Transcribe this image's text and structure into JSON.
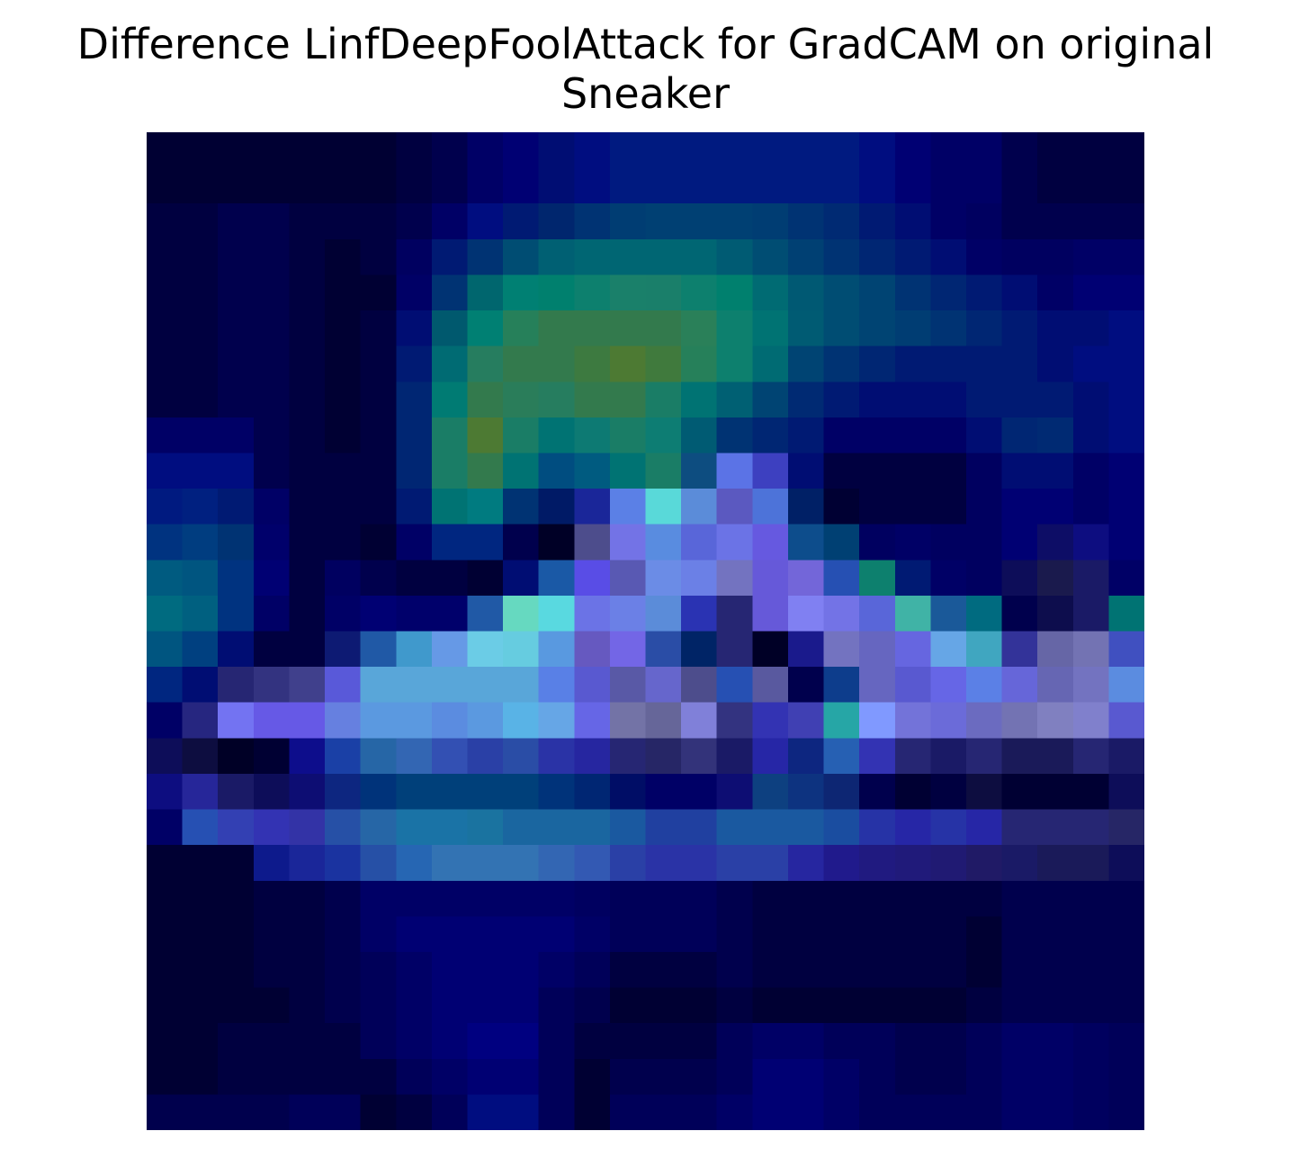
{
  "chart_data": {
    "type": "heatmap",
    "title_lines": [
      "Difference LinfDeepFoolAttack for GradCAM on original",
      "Sneaker"
    ],
    "xlabel": "",
    "ylabel": "",
    "axes_visible": false,
    "rows": 28,
    "cols": 28,
    "colors": [
      [
        "#000033",
        "#000033",
        "#000033",
        "#000033",
        "#000033",
        "#000033",
        "#000033",
        "#000040",
        "#00004d",
        "#000066",
        "#000073",
        "#000d73",
        "#000d80",
        "#001a80",
        "#001a80",
        "#001a80",
        "#001a80",
        "#001a80",
        "#001a80",
        "#001a80",
        "#000d80",
        "#000073",
        "#000066",
        "#000066",
        "#00004d",
        "#000040",
        "#000040",
        "#000040"
      ],
      [
        "#000033",
        "#000033",
        "#000033",
        "#000033",
        "#000033",
        "#000033",
        "#000033",
        "#000040",
        "#00004d",
        "#000066",
        "#000073",
        "#000d73",
        "#000d80",
        "#001a80",
        "#001a80",
        "#001a80",
        "#001a80",
        "#001a80",
        "#001a80",
        "#001a80",
        "#000d80",
        "#000073",
        "#000066",
        "#000066",
        "#00004d",
        "#000040",
        "#000040",
        "#000040"
      ],
      [
        "#000040",
        "#000040",
        "#00004d",
        "#00004d",
        "#000040",
        "#000040",
        "#000040",
        "#00004d",
        "#000066",
        "#000d80",
        "#001a73",
        "#00266e",
        "#003373",
        "#003d73",
        "#004073",
        "#004073",
        "#004073",
        "#003d73",
        "#003373",
        "#002a73",
        "#001a73",
        "#000d73",
        "#000066",
        "#000060",
        "#00004d",
        "#00004d",
        "#00004d",
        "#00004d"
      ],
      [
        "#000040",
        "#000040",
        "#00004d",
        "#00004d",
        "#000040",
        "#000033",
        "#000040",
        "#000060",
        "#001a73",
        "#003373",
        "#004d73",
        "#006073",
        "#006673",
        "#006673",
        "#006673",
        "#006673",
        "#005b73",
        "#004d73",
        "#004073",
        "#003373",
        "#002673",
        "#001a73",
        "#000d73",
        "#000066",
        "#000060",
        "#000060",
        "#000066",
        "#000066"
      ],
      [
        "#000040",
        "#000040",
        "#00004d",
        "#00004d",
        "#000040",
        "#000033",
        "#000033",
        "#000066",
        "#003373",
        "#00666e",
        "#008073",
        "#00806e",
        "#0d806e",
        "#1a806a",
        "#1a7f6a",
        "#0d806e",
        "#00806e",
        "#006b73",
        "#005973",
        "#004d73",
        "#004473",
        "#003373",
        "#002673",
        "#001a73",
        "#000d73",
        "#000066",
        "#000073",
        "#000073"
      ],
      [
        "#000040",
        "#000040",
        "#00004d",
        "#00004d",
        "#000040",
        "#000033",
        "#000040",
        "#000d73",
        "#00596e",
        "#008073",
        "#26805a",
        "#337a4d",
        "#337a4d",
        "#337a4d",
        "#337a4d",
        "#2a8059",
        "#0d806e",
        "#007373",
        "#005b73",
        "#004d73",
        "#004473",
        "#003d73",
        "#003373",
        "#002673",
        "#001a73",
        "#000d73",
        "#000d73",
        "#000d80"
      ],
      [
        "#000040",
        "#000040",
        "#00004d",
        "#00004d",
        "#000040",
        "#000033",
        "#000040",
        "#001a73",
        "#006b73",
        "#267d5f",
        "#337a4d",
        "#337a4d",
        "#3d7a40",
        "#4d7a33",
        "#407a3d",
        "#26805a",
        "#0d806e",
        "#006b73",
        "#004473",
        "#003373",
        "#002673",
        "#001a73",
        "#001a73",
        "#001a73",
        "#001a73",
        "#000d73",
        "#000d80",
        "#000d80"
      ],
      [
        "#000040",
        "#000040",
        "#00004d",
        "#00004d",
        "#000040",
        "#000033",
        "#000040",
        "#002673",
        "#007b73",
        "#337a4d",
        "#2a7d5a",
        "#267d5f",
        "#337a4d",
        "#337a4d",
        "#1a7d66",
        "#007373",
        "#006073",
        "#004473",
        "#002a73",
        "#001a73",
        "#000d73",
        "#000d73",
        "#000d73",
        "#001a73",
        "#001a73",
        "#001a73",
        "#000d73",
        "#000d80"
      ],
      [
        "#000066",
        "#000066",
        "#000066",
        "#00004d",
        "#000040",
        "#000033",
        "#000040",
        "#002673",
        "#1a7d66",
        "#4d7a33",
        "#1a7d66",
        "#007373",
        "#0d7a73",
        "#1a7d66",
        "#0d7d73",
        "#005b73",
        "#003373",
        "#002673",
        "#001a73",
        "#000066",
        "#000066",
        "#000066",
        "#000066",
        "#000d73",
        "#002673",
        "#002a73",
        "#000d73",
        "#000d80"
      ],
      [
        "#000d80",
        "#000d80",
        "#000d80",
        "#00004d",
        "#000040",
        "#000040",
        "#000040",
        "#002673",
        "#1a7d66",
        "#337a4d",
        "#007373",
        "#004d80",
        "#005b80",
        "#007373",
        "#1a7d66",
        "#0d4d80",
        "#5b73e6",
        "#3d40c0",
        "#000d73",
        "#000040",
        "#000040",
        "#000040",
        "#000040",
        "#000060",
        "#000d73",
        "#000d73",
        "#000066",
        "#000073"
      ],
      [
        "#001a80",
        "#002080",
        "#001a73",
        "#000066",
        "#000040",
        "#000040",
        "#000040",
        "#001a73",
        "#007373",
        "#007b80",
        "#003373",
        "#001a66",
        "#1a2699",
        "#5b80e6",
        "#59d9d9",
        "#5b8cd9",
        "#5b59c0",
        "#4d73d9",
        "#002066",
        "#000033",
        "#000040",
        "#000040",
        "#000040",
        "#000060",
        "#000073",
        "#000073",
        "#000066",
        "#000073"
      ],
      [
        "#003380",
        "#003d80",
        "#003373",
        "#00006b",
        "#000040",
        "#000040",
        "#000033",
        "#000066",
        "#002680",
        "#002680",
        "#00004d",
        "#000026",
        "#4d4d8c",
        "#7373e6",
        "#598ce0",
        "#5966d9",
        "#6b73e6",
        "#6659e0",
        "#0d4d8c",
        "#004073",
        "#000060",
        "#000066",
        "#000060",
        "#000060",
        "#000073",
        "#0d0d66",
        "#0d0d80",
        "#000073"
      ],
      [
        "#005b80",
        "#005580",
        "#003380",
        "#000073",
        "#000040",
        "#000060",
        "#00004d",
        "#000040",
        "#000040",
        "#000033",
        "#000d73",
        "#1a59a6",
        "#594de6",
        "#5959b3",
        "#6b8ce6",
        "#6b80e6",
        "#7373c0",
        "#6659d9",
        "#7366d9",
        "#2650b3",
        "#0d806e",
        "#001a73",
        "#000066",
        "#000060",
        "#0d0d59",
        "#1a1a4d",
        "#1a1a66",
        "#000066"
      ],
      [
        "#006b80",
        "#006080",
        "#003380",
        "#000066",
        "#000040",
        "#000066",
        "#000073",
        "#00006b",
        "#00006b",
        "#2059a6",
        "#66d9c0",
        "#59d9e0",
        "#6b73e6",
        "#6b80e6",
        "#5b8cd9",
        "#2a33b3",
        "#262673",
        "#6659d9",
        "#8080f2",
        "#7373e6",
        "#5966d9",
        "#40b3a6",
        "#1a5999",
        "#006b80",
        "#00004d",
        "#0d0d4d",
        "#1a1a66",
        "#007373"
      ],
      [
        "#005580",
        "#004080",
        "#000d73",
        "#000040",
        "#000040",
        "#0d1a73",
        "#2059a6",
        "#4099cc",
        "#6699e6",
        "#6bcce6",
        "#66cce0",
        "#5999e0",
        "#6659c0",
        "#7366e6",
        "#2a4da6",
        "#002466",
        "#262673",
        "#000026",
        "#1a1a8c",
        "#7373c0",
        "#6666c0",
        "#6666e0",
        "#66a6e6",
        "#40a6c0",
        "#333399",
        "#6666a6",
        "#7373b3",
        "#4050c0"
      ],
      [
        "#002680",
        "#000d73",
        "#262673",
        "#333380",
        "#40408c",
        "#5959d9",
        "#59a6d9",
        "#59a6d9",
        "#59a6d9",
        "#59a6d9",
        "#59a6d9",
        "#5980e6",
        "#5959d0",
        "#5959a6",
        "#6666cc",
        "#4d4d8c",
        "#2650b3",
        "#59599f",
        "#00004d",
        "#0d3d8c",
        "#6666c0",
        "#5959d0",
        "#6666e6",
        "#5b80e6",
        "#6666d9",
        "#6666b3",
        "#7373c0",
        "#5b8ce0"
      ],
      [
        "#000066",
        "#262680",
        "#7373f2",
        "#6659e6",
        "#6659e6",
        "#6680e0",
        "#5b99e0",
        "#5b99e0",
        "#5b8ce0",
        "#5b99e0",
        "#59b3e6",
        "#66a6e6",
        "#6666e6",
        "#7373a6",
        "#666699",
        "#8080d9",
        "#333380",
        "#3333b3",
        "#4040b3",
        "#26a6a6",
        "#8099ff",
        "#7373d9",
        "#6b6bd9",
        "#6b6bc0",
        "#7373b3",
        "#8080c0",
        "#8080cc",
        "#5959d0"
      ],
      [
        "#0d0d59",
        "#0d0d40",
        "#000026",
        "#000033",
        "#0d0d8c",
        "#1a40a6",
        "#2666a6",
        "#3366b3",
        "#3350b3",
        "#2a40a6",
        "#2a4da6",
        "#2a33a6",
        "#2626a0",
        "#262673",
        "#262666",
        "#33337a",
        "#1a1a66",
        "#2626a6",
        "#0d2680",
        "#2660b3",
        "#3333b3",
        "#262673",
        "#1a1a66",
        "#262673",
        "#1a1a59",
        "#1a1a59",
        "#262673",
        "#1a1a66"
      ],
      [
        "#0d0d80",
        "#262699",
        "#1a1a66",
        "#0d0d59",
        "#0d0d73",
        "#0d2680",
        "#00337a",
        "#00407a",
        "#00407a",
        "#00407a",
        "#00407a",
        "#00337a",
        "#002673",
        "#000d66",
        "#000066",
        "#000066",
        "#0d0d73",
        "#0d4080",
        "#0d3380",
        "#0d2673",
        "#00004d",
        "#000033",
        "#000040",
        "#0d0d40",
        "#000033",
        "#000033",
        "#000033",
        "#0d0d59"
      ],
      [
        "#000066",
        "#2650b3",
        "#3340b3",
        "#3333b3",
        "#3333a6",
        "#2650a6",
        "#2666a6",
        "#1a73a6",
        "#1a73a6",
        "#1a73a0",
        "#1a66a0",
        "#1a66a0",
        "#1a66a0",
        "#1a59a0",
        "#2040a0",
        "#2040a0",
        "#1a59a0",
        "#1a59a0",
        "#1a59a0",
        "#1a4da0",
        "#2633a6",
        "#2626a6",
        "#2633a6",
        "#2626a6",
        "#262673",
        "#262673",
        "#262673",
        "#262666"
      ],
      [
        "#000033",
        "#000033",
        "#000033",
        "#0d1a8c",
        "#1a2699",
        "#1a33a0",
        "#2650a6",
        "#2666b3",
        "#3373b3",
        "#3373b3",
        "#3373b3",
        "#3366b3",
        "#3359b3",
        "#2a40a6",
        "#2a33a6",
        "#2a33a6",
        "#2a40a6",
        "#2a40a6",
        "#2626a0",
        "#201a8c",
        "#201a80",
        "#201a7a",
        "#201a73",
        "#201a66",
        "#1a1a66",
        "#1a1a59",
        "#1a1a59",
        "#0d0d59"
      ],
      [
        "#000033",
        "#000033",
        "#000033",
        "#000040",
        "#000040",
        "#00004d",
        "#000066",
        "#000066",
        "#000066",
        "#000066",
        "#000066",
        "#000066",
        "#000060",
        "#000059",
        "#000059",
        "#000059",
        "#00004d",
        "#000040",
        "#000040",
        "#000040",
        "#000040",
        "#000040",
        "#000040",
        "#000040",
        "#00004d",
        "#00004d",
        "#00004d",
        "#00004d"
      ],
      [
        "#000033",
        "#000033",
        "#000033",
        "#000040",
        "#000040",
        "#00004d",
        "#000066",
        "#000073",
        "#000073",
        "#000073",
        "#000073",
        "#000073",
        "#000066",
        "#000059",
        "#000059",
        "#000059",
        "#00004d",
        "#000040",
        "#000040",
        "#000040",
        "#000040",
        "#000040",
        "#000040",
        "#000033",
        "#00004d",
        "#00004d",
        "#00004d",
        "#00004d"
      ],
      [
        "#000033",
        "#000033",
        "#000033",
        "#000040",
        "#000040",
        "#00004d",
        "#000059",
        "#000066",
        "#000073",
        "#000073",
        "#000073",
        "#000066",
        "#000059",
        "#000040",
        "#000040",
        "#000040",
        "#00004d",
        "#000040",
        "#000040",
        "#000040",
        "#000040",
        "#000040",
        "#000040",
        "#000033",
        "#00004d",
        "#00004d",
        "#00004d",
        "#00004d"
      ],
      [
        "#000033",
        "#000033",
        "#000033",
        "#000033",
        "#000040",
        "#00004d",
        "#000059",
        "#000066",
        "#000073",
        "#000073",
        "#000073",
        "#000059",
        "#00004d",
        "#000033",
        "#000033",
        "#000033",
        "#000040",
        "#000033",
        "#000033",
        "#000033",
        "#000033",
        "#000033",
        "#000033",
        "#000040",
        "#00004d",
        "#00004d",
        "#00004d",
        "#00004d"
      ],
      [
        "#000033",
        "#000033",
        "#000040",
        "#000040",
        "#000040",
        "#000040",
        "#000059",
        "#000066",
        "#000073",
        "#000080",
        "#000080",
        "#000059",
        "#000040",
        "#000040",
        "#000040",
        "#000040",
        "#000059",
        "#000066",
        "#000066",
        "#000059",
        "#000059",
        "#00004d",
        "#00004d",
        "#000059",
        "#000066",
        "#000066",
        "#00005f",
        "#000059"
      ],
      [
        "#000033",
        "#000033",
        "#000040",
        "#000040",
        "#000040",
        "#000040",
        "#000040",
        "#000059",
        "#000066",
        "#000073",
        "#000073",
        "#000059",
        "#000033",
        "#00004d",
        "#00004d",
        "#00004d",
        "#000059",
        "#000073",
        "#000073",
        "#000066",
        "#000059",
        "#00004d",
        "#00004d",
        "#000059",
        "#000066",
        "#000066",
        "#00005f",
        "#000059"
      ],
      [
        "#00004d",
        "#00004d",
        "#00004d",
        "#00004d",
        "#000059",
        "#000059",
        "#000033",
        "#000040",
        "#000059",
        "#000d80",
        "#000d80",
        "#000059",
        "#000033",
        "#000059",
        "#000059",
        "#000059",
        "#000066",
        "#000073",
        "#000073",
        "#000066",
        "#000059",
        "#000059",
        "#000059",
        "#000059",
        "#000066",
        "#000066",
        "#00005f",
        "#000059"
      ]
    ]
  }
}
